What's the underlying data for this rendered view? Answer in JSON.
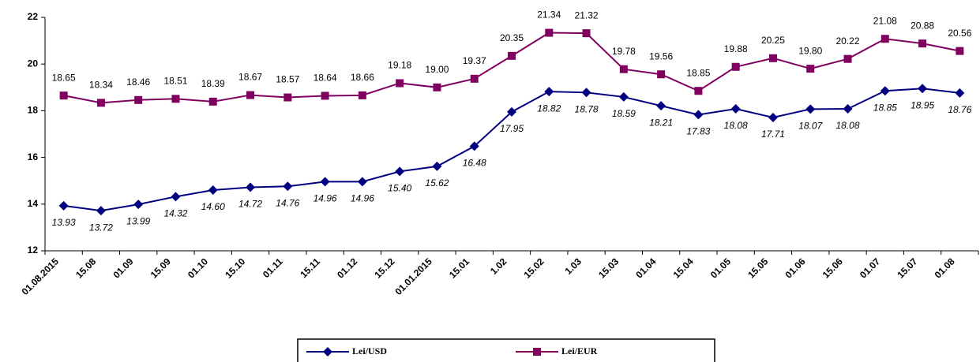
{
  "chart_data": {
    "type": "line",
    "categories": [
      "01.08.2015",
      "15.08",
      "01.09",
      "15.09",
      "01.10",
      "15.10",
      "01.11",
      "15.11",
      "01.12",
      "15.12",
      "01.01.2015",
      "15.01",
      "1.02",
      "15.02",
      "1.03",
      "15.03",
      "01.04",
      "15.04",
      "01.05",
      "15.05",
      "01.06",
      "15.06",
      "01.07",
      "15.07",
      "01.08"
    ],
    "series": [
      {
        "name": "Lei/USD",
        "color": "#000080",
        "marker": "diamond",
        "values": [
          13.93,
          13.72,
          13.99,
          14.32,
          14.6,
          14.72,
          14.76,
          14.96,
          14.96,
          15.4,
          15.62,
          16.48,
          17.95,
          18.82,
          18.78,
          18.59,
          18.21,
          17.83,
          18.08,
          17.71,
          18.07,
          18.08,
          18.85,
          18.95,
          18.76
        ],
        "value_labels": [
          "13.93",
          "13.72",
          "13.99",
          "14.32",
          "14.60",
          "14.72",
          "14.76",
          "14.96",
          "14.96",
          "15.40",
          "15.62",
          "16.48",
          "17.95",
          "18.82",
          "18.78",
          "18.59",
          "18.21",
          "17.83",
          "18.08",
          "17.71",
          "18.07",
          "18.08",
          "18.85",
          "18.95",
          "18.76"
        ]
      },
      {
        "name": "Lei/EUR",
        "color": "#800060",
        "marker": "square",
        "values": [
          18.65,
          18.34,
          18.46,
          18.51,
          18.39,
          18.67,
          18.57,
          18.64,
          18.66,
          19.18,
          19.0,
          19.37,
          20.35,
          21.34,
          21.32,
          19.78,
          19.56,
          18.85,
          19.88,
          20.25,
          19.8,
          20.22,
          21.08,
          20.88,
          20.56
        ],
        "value_labels": [
          "18.65",
          "18.34",
          "18.46",
          "18.51",
          "18.39",
          "18.67",
          "18.57",
          "18.64",
          "18.66",
          "19.18",
          "19.00",
          "19.37",
          "20.35",
          "21.34",
          "21.32",
          "19.78",
          "19.56",
          "18.85",
          "19.88",
          "20.25",
          "19.80",
          "20.22",
          "21.08",
          "20.88",
          "20.56"
        ]
      }
    ],
    "ylim": [
      12,
      22
    ],
    "yticks": [
      12,
      14,
      16,
      18,
      20,
      22
    ],
    "grid": false,
    "legend": "bottom"
  }
}
